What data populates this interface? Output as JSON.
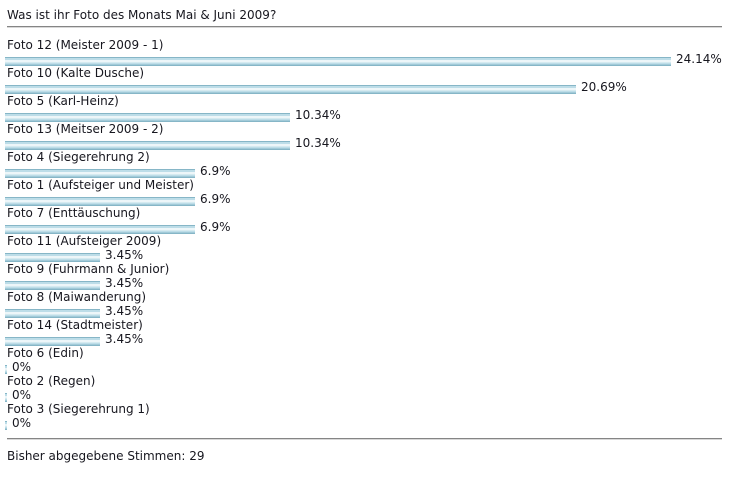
{
  "poll": {
    "question": "Was ist ihr Foto des Monats Mai & Juni 2009?",
    "options": [
      {
        "label": "Foto 12 (Meister 2009 - 1)",
        "percent": 24.14,
        "percent_label": "24.14%"
      },
      {
        "label": "Foto 10 (Kalte Dusche)",
        "percent": 20.69,
        "percent_label": "20.69%"
      },
      {
        "label": "Foto 5 (Karl-Heinz)",
        "percent": 10.34,
        "percent_label": "10.34%"
      },
      {
        "label": "Foto 13 (Meitser 2009 - 2)",
        "percent": 10.34,
        "percent_label": "10.34%"
      },
      {
        "label": "Foto 4 (Siegerehrung 2)",
        "percent": 6.9,
        "percent_label": "6.9%"
      },
      {
        "label": "Foto 1 (Aufsteiger und Meister)",
        "percent": 6.9,
        "percent_label": "6.9%"
      },
      {
        "label": "Foto 7 (Enttäuschung)",
        "percent": 6.9,
        "percent_label": "6.9%"
      },
      {
        "label": "Foto 11 (Aufsteiger 2009)",
        "percent": 3.45,
        "percent_label": "3.45%"
      },
      {
        "label": "Foto 9 (Fuhrmann & Junior)",
        "percent": 3.45,
        "percent_label": "3.45%"
      },
      {
        "label": "Foto 8 (Maiwanderung)",
        "percent": 3.45,
        "percent_label": "3.45%"
      },
      {
        "label": "Foto 14 (Stadtmeister)",
        "percent": 3.45,
        "percent_label": "3.45%"
      },
      {
        "label": "Foto 6 (Edin)",
        "percent": 0,
        "percent_label": "0%"
      },
      {
        "label": "Foto 2 (Regen)",
        "percent": 0,
        "percent_label": "0%"
      },
      {
        "label": "Foto 3 (Siegerehrung 1)",
        "percent": 0,
        "percent_label": "0%"
      }
    ],
    "footer_label": "Bisher abgegebene Stimmen:",
    "total_votes": "29"
  },
  "colors": {
    "bar_edge": "#86b6c7",
    "bar_fill": "#bddde8",
    "bar_center": "#edf6f9",
    "separator": "#858585",
    "text": "#17171f",
    "background": "#ffffff"
  },
  "chart_data": {
    "type": "bar",
    "orientation": "horizontal",
    "title": "Was ist ihr Foto des Monats Mai & Juni 2009?",
    "categories": [
      "Foto 12 (Meister 2009 - 1)",
      "Foto 10 (Kalte Dusche)",
      "Foto 5 (Karl-Heinz)",
      "Foto 13 (Meitser 2009 - 2)",
      "Foto 4 (Siegerehrung 2)",
      "Foto 1 (Aufsteiger und Meister)",
      "Foto 7 (Enttäuschung)",
      "Foto 11 (Aufsteiger 2009)",
      "Foto 9 (Fuhrmann & Junior)",
      "Foto 8 (Maiwanderung)",
      "Foto 14 (Stadtmeister)",
      "Foto 6 (Edin)",
      "Foto 2 (Regen)",
      "Foto 3 (Siegerehrung 1)"
    ],
    "values": [
      24.14,
      20.69,
      10.34,
      10.34,
      6.9,
      6.9,
      6.9,
      3.45,
      3.45,
      3.45,
      3.45,
      0,
      0,
      0
    ],
    "value_labels": [
      "24.14%",
      "20.69%",
      "10.34%",
      "10.34%",
      "6.9%",
      "6.9%",
      "6.9%",
      "3.45%",
      "3.45%",
      "3.45%",
      "3.45%",
      "0%",
      "0%",
      "0%"
    ],
    "unit": "percent",
    "xlim": [
      0,
      26
    ],
    "grid": false,
    "legend": false,
    "annotation": "Bisher abgegebene Stimmen: 29",
    "total_votes": 29
  }
}
